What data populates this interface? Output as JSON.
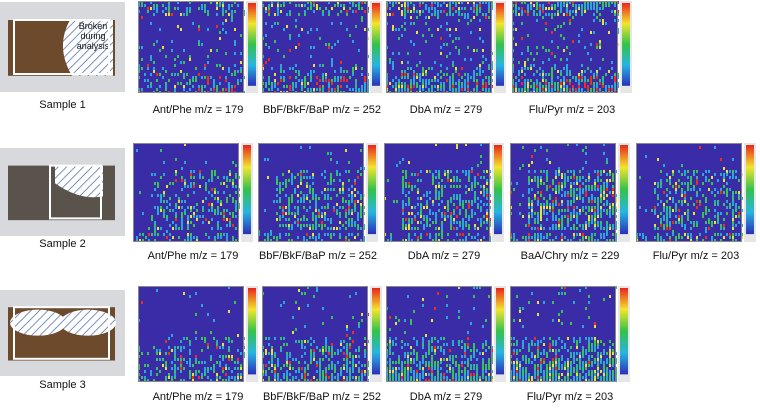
{
  "samples": [
    {
      "label": "Sample 1",
      "annotation": [
        "Broken",
        "during",
        "analysis"
      ],
      "panels": [
        "Ant/Phe m/z = 179",
        "BbF/BkF/BaP m/z = 252",
        "DbA m/z = 279",
        "Flu/Pyr m/z = 203"
      ]
    },
    {
      "label": "Sample 2",
      "panels": [
        "Ant/Phe m/z = 179",
        "BbF/BkF/BaP m/z = 252",
        "DbA m/z = 279",
        "BaA/Chry m/z = 229",
        "Flu/Pyr m/z = 203"
      ]
    },
    {
      "label": "Sample 3",
      "panels": [
        "Ant/Phe m/z = 179",
        "BbF/BkF/BaP m/z = 252",
        "DbA m/z = 279",
        "Flu/Pyr m/z = 203"
      ]
    }
  ]
}
